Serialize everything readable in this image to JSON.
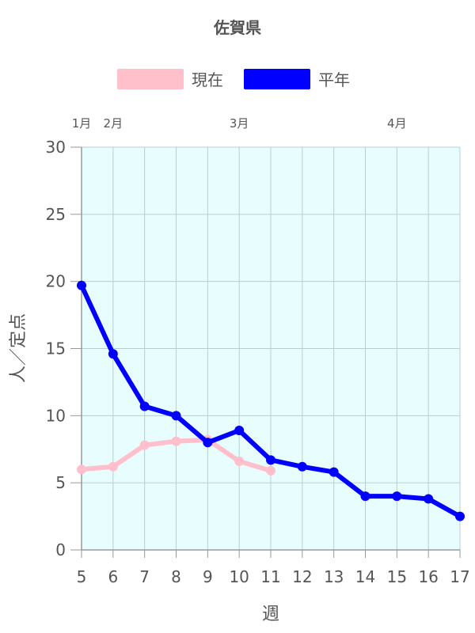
{
  "chart_data": {
    "type": "line",
    "title": "佐賀県",
    "xlabel": "週",
    "ylabel": "人／定点",
    "x": [
      5,
      6,
      7,
      8,
      9,
      10,
      11,
      12,
      13,
      14,
      15,
      16,
      17
    ],
    "xlim": [
      5,
      17
    ],
    "ylim": [
      0,
      30
    ],
    "yticks": [
      0,
      5,
      10,
      15,
      20,
      25,
      30
    ],
    "grid": true,
    "legend_position": "top",
    "plot_background": "#e8fdfd",
    "month_labels": [
      {
        "label": "1月",
        "x": 5
      },
      {
        "label": "2月",
        "x": 6
      },
      {
        "label": "3月",
        "x": 10
      },
      {
        "label": "4月",
        "x": 15
      }
    ],
    "series": [
      {
        "name": "現在",
        "color": "#ffc0cb",
        "values": [
          6.0,
          6.2,
          7.8,
          8.1,
          8.2,
          6.6,
          5.9,
          null,
          null,
          null,
          null,
          null,
          null
        ]
      },
      {
        "name": "平年",
        "color": "#0000ff",
        "values": [
          19.7,
          14.6,
          10.7,
          10.0,
          8.0,
          8.9,
          6.7,
          6.2,
          5.8,
          4.0,
          4.0,
          3.8,
          2.5
        ]
      }
    ]
  }
}
